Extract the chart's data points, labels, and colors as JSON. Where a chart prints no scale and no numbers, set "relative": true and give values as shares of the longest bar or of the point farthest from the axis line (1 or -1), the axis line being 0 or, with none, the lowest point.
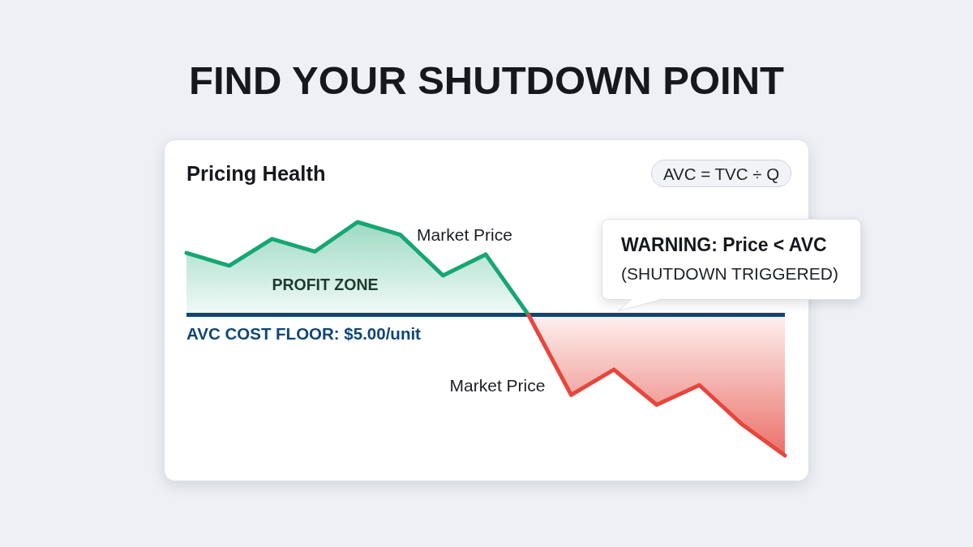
{
  "chart_data": {
    "type": "area",
    "title": "FIND YOUR SHUTDOWN POINT",
    "subtitle": "Pricing Health",
    "relative": true,
    "categories": [
      null,
      null,
      null,
      null,
      null,
      null,
      null,
      null,
      null,
      null,
      null,
      null,
      null,
      null,
      null
    ],
    "series": [
      {
        "name": "Market Price",
        "color": "#17a673",
        "values": [
          0.44,
          0.35,
          0.54,
          0.45,
          0.66,
          0.57,
          0.28,
          0.43,
          0,
          null,
          null,
          null,
          null,
          null,
          null
        ]
      },
      {
        "name": "Market Price",
        "color": "#e5473d",
        "values": [
          null,
          null,
          null,
          null,
          null,
          null,
          null,
          null,
          0,
          -0.57,
          -0.39,
          -0.64,
          -0.5,
          -0.78,
          -1
        ]
      }
    ],
    "ref_lines": [
      {
        "axis": "y",
        "value": 0,
        "color": "#0f4677"
      }
    ],
    "annotations": [
      "AVC = TVC ÷ Q",
      "WARNING: Price < AVC",
      "(SHUTDOWN TRIGGERED)",
      "PROFIT ZONE",
      "AVC COST FLOOR: $5.00/unit"
    ]
  }
}
